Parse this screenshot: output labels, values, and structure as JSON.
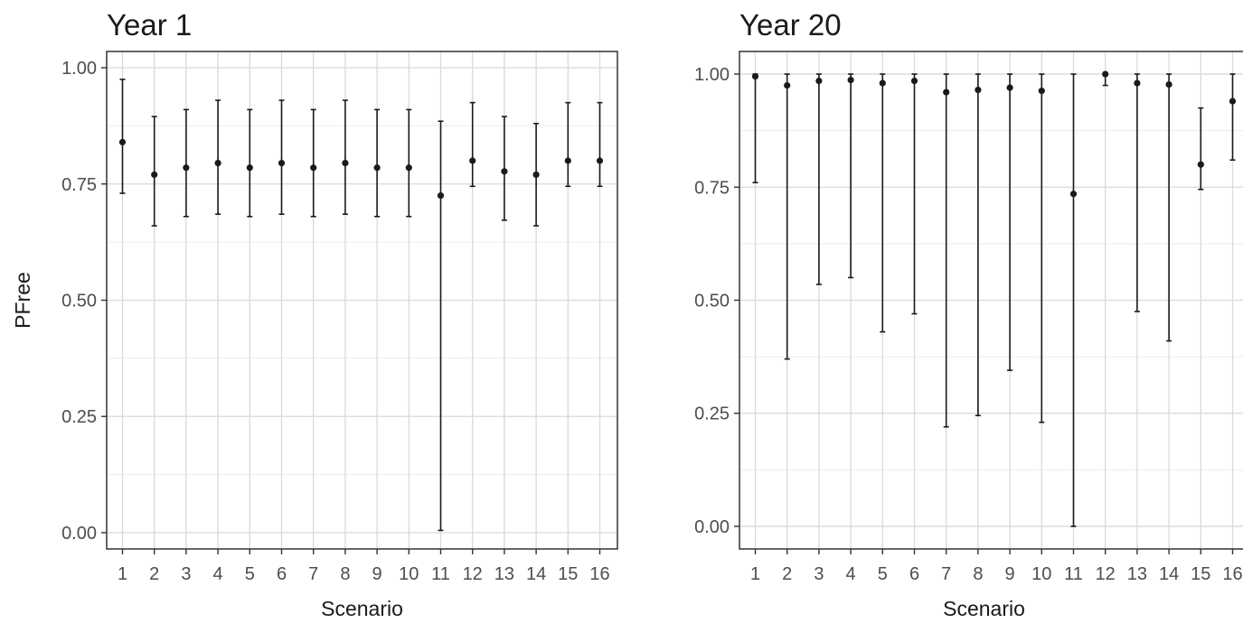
{
  "chart_data": [
    {
      "type": "scatter",
      "title": "Year 1",
      "xlabel": "Scenario",
      "ylabel": "PFree",
      "ylim": [
        -0.035,
        1.035
      ],
      "grid": true,
      "legend": "none",
      "error_bars": true,
      "categories": [
        "1",
        "2",
        "3",
        "4",
        "5",
        "6",
        "7",
        "8",
        "9",
        "10",
        "11",
        "12",
        "13",
        "14",
        "15",
        "16"
      ],
      "y_ticks": [
        "0.00",
        "0.25",
        "0.50",
        "0.75",
        "1.00"
      ],
      "values": [
        0.84,
        0.77,
        0.785,
        0.795,
        0.785,
        0.795,
        0.785,
        0.795,
        0.785,
        0.785,
        0.725,
        0.8,
        0.777,
        0.77,
        0.8,
        0.8
      ],
      "lower": [
        0.73,
        0.66,
        0.68,
        0.685,
        0.68,
        0.685,
        0.68,
        0.685,
        0.68,
        0.68,
        0.005,
        0.745,
        0.672,
        0.66,
        0.745,
        0.745
      ],
      "upper": [
        0.975,
        0.895,
        0.91,
        0.93,
        0.91,
        0.93,
        0.91,
        0.93,
        0.91,
        0.91,
        0.885,
        0.925,
        0.895,
        0.88,
        0.925,
        0.925
      ]
    },
    {
      "type": "scatter",
      "title": "Year 20",
      "xlabel": "Scenario",
      "ylabel": "",
      "ylim": [
        -0.05,
        1.05
      ],
      "grid": true,
      "legend": "none",
      "error_bars": true,
      "categories": [
        "1",
        "2",
        "3",
        "4",
        "5",
        "6",
        "7",
        "8",
        "9",
        "10",
        "11",
        "12",
        "13",
        "14",
        "15",
        "16"
      ],
      "y_ticks": [
        "0.00",
        "0.25",
        "0.50",
        "0.75",
        "1.00"
      ],
      "values": [
        0.995,
        0.975,
        0.985,
        0.987,
        0.98,
        0.985,
        0.96,
        0.965,
        0.97,
        0.963,
        0.735,
        1.0,
        0.98,
        0.977,
        0.8,
        0.94
      ],
      "lower": [
        0.76,
        0.37,
        0.535,
        0.55,
        0.43,
        0.47,
        0.22,
        0.245,
        0.345,
        0.23,
        0.0,
        0.975,
        0.475,
        0.41,
        0.745,
        0.81
      ],
      "upper": [
        1.0,
        1.0,
        1.0,
        1.0,
        1.0,
        1.0,
        1.0,
        1.0,
        1.0,
        1.0,
        1.0,
        1.0,
        1.0,
        1.0,
        0.925,
        1.0
      ]
    }
  ],
  "colors": {
    "panel_border": "#333333",
    "grid_major": "#d9d9d9",
    "grid_minor": "#ebebeb",
    "point": "#1a1a1a",
    "tick_text": "#4d4d4d",
    "title_text": "#1a1a1a"
  }
}
